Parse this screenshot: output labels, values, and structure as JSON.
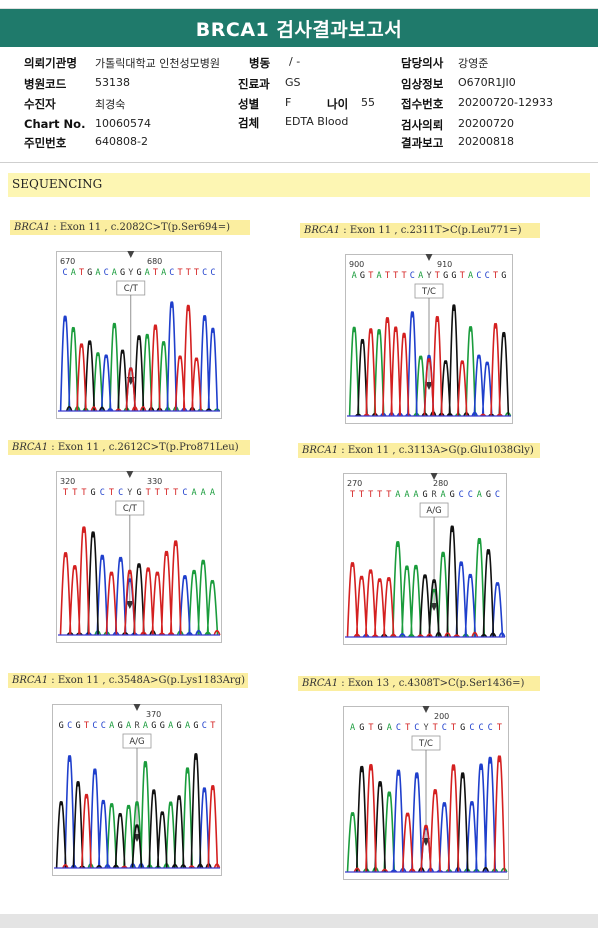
{
  "header": {
    "title": "BRCA1 검사결과보고서"
  },
  "info": {
    "institution_label": "의뢰기관명",
    "institution_value": "가톨릭대학교 인천성모병원",
    "ward_label": "병동",
    "ward_value": "/ -",
    "doctor_label": "담당의사",
    "doctor_value": "강영준",
    "hospital_code_label": "병원코드",
    "hospital_code_value": "53138",
    "department_label": "진료과",
    "department_value": "GS",
    "clinical_info_label": "임상정보",
    "clinical_info_value": "O670R1JI0",
    "patient_label": "수진자",
    "patient_value": "최경숙",
    "sex_label": "성별",
    "sex_value": "F",
    "age_label": "나이",
    "age_value": "55",
    "receipt_label": "접수번호",
    "receipt_value": "20200720-12933",
    "chart_label": "Chart No.",
    "chart_value": "10060574",
    "specimen_label": "검체",
    "specimen_value": "EDTA Blood",
    "request_label": "검사의뢰",
    "request_value": "20200720",
    "ssn_label": "주민번호",
    "ssn_value": "640808-2",
    "report_label": "결과보고",
    "report_value": "20200818"
  },
  "section_title": "SEQUENCING",
  "colors": {
    "header": "#1f7a6b",
    "A": "#1a9c3c",
    "C": "#1f3fcc",
    "G": "#111111",
    "T": "#d42020"
  },
  "panels": [
    {
      "gene": "BRCA1",
      "desc": " : Exon 11 , c.2082C>T(p.Ser694=)",
      "seq": "CATGACAGYGATACTTTCC",
      "pos1": "670",
      "pos2": "680",
      "call": "C/T",
      "icon": "arrow-down-icon"
    },
    {
      "gene": "BRCA1",
      "desc": " : Exon 11 , c.2311T>C(p.Leu771=)",
      "seq": "AGTATTTCAYTGGTACCTG",
      "pos1": "900",
      "pos2": "910",
      "call": "T/C",
      "icon": "arrow-down-icon"
    },
    {
      "gene": "BRCA1",
      "desc": " : Exon 11 , c.2612C>T(p.Pro871Leu)",
      "seq": "TTTGCTCYGTTTTCAAA",
      "pos1": "320",
      "pos2": "330",
      "call": "C/T",
      "icon": "arrow-down-icon"
    },
    {
      "gene": "BRCA1",
      "desc": " : Exon 11 , c.3113A>G(p.Glu1038Gly)",
      "seq": "TTTTTAAAGRAGCCAGC",
      "pos1": "270",
      "pos2": "280",
      "call": "A/G",
      "icon": "arrow-down-icon"
    },
    {
      "gene": "BRCA1",
      "desc": " : Exon 11 , c.3548A>G(p.Lys1183Arg)",
      "seq": "GCGTCCAGARAGGAGAGCT",
      "pos1": "",
      "pos2": "370",
      "call": "A/G",
      "icon": "arrow-down-icon"
    },
    {
      "gene": "BRCA1",
      "desc": " : Exon 13 , c.4308T>C(p.Ser1436=)",
      "seq": "AGTGACTCYTCTGCCCT",
      "pos1": "",
      "pos2": "200",
      "call": "T/C",
      "icon": "arrow-down-icon"
    }
  ]
}
